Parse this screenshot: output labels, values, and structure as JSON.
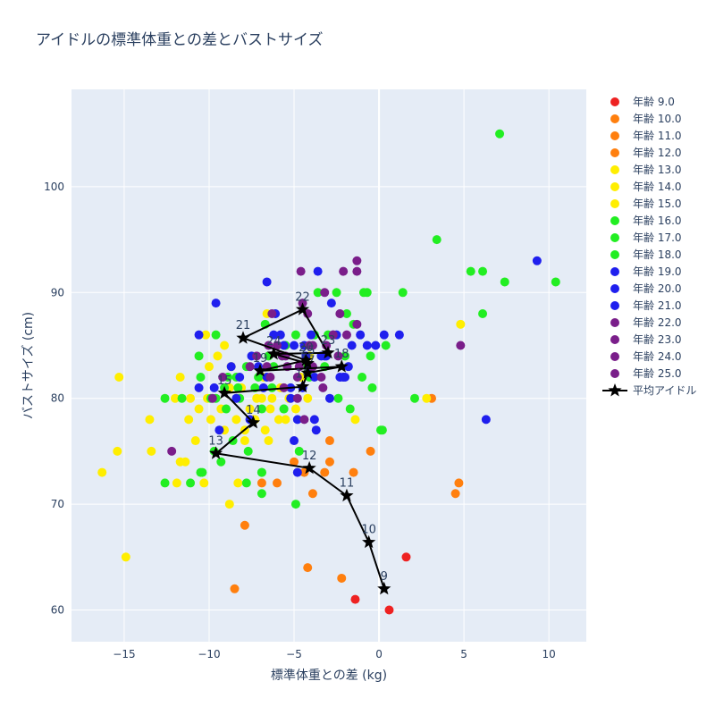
{
  "chart_data": {
    "type": "scatter",
    "title": "アイドルの標準体重との差とバストサイズ",
    "xlabel": "標準体重との差 (kg)",
    "ylabel": "バストサイズ (cm)",
    "xlim": [
      -18.1,
      12.2
    ],
    "ylim": [
      57,
      109.2
    ],
    "xticks": [
      -15,
      -10,
      -5,
      0,
      5,
      10
    ],
    "yticks": [
      60,
      70,
      80,
      90,
      100
    ],
    "xtick_labels": [
      "−15",
      "−10",
      "−5",
      "0",
      "5",
      "10"
    ],
    "ytick_labels": [
      "60",
      "70",
      "80",
      "90",
      "100"
    ],
    "grid": true,
    "legend_position": "right",
    "series": [
      {
        "name": "年齢 9.0",
        "color": "#ee2222",
        "points": [
          [
            -1.4,
            61
          ],
          [
            0.6,
            60
          ],
          [
            1.6,
            65
          ]
        ]
      },
      {
        "name": "年齢 10.0",
        "color": "#ff7f0e",
        "points": [
          [
            -8.5,
            62
          ],
          [
            -4.2,
            64
          ],
          [
            -2.2,
            63
          ],
          [
            -0.5,
            75
          ],
          [
            3.1,
            80
          ]
        ]
      },
      {
        "name": "年齢 11.0",
        "color": "#ff7f0e",
        "points": [
          [
            -7.9,
            68
          ],
          [
            -3.9,
            71
          ],
          [
            -3.2,
            73
          ],
          [
            -2.9,
            74
          ],
          [
            -1.5,
            73
          ],
          [
            4.5,
            71
          ],
          [
            4.7,
            72
          ]
        ]
      },
      {
        "name": "年齢 12.0",
        "color": "#ff7f0e",
        "points": [
          [
            -6.9,
            72
          ],
          [
            -6.0,
            72
          ],
          [
            -5.0,
            74
          ],
          [
            -4.4,
            73
          ],
          [
            -2.9,
            76
          ]
        ]
      },
      {
        "name": "年齢 13.0",
        "color": "#ffee00",
        "points": [
          [
            -16.3,
            73
          ],
          [
            -15.4,
            75
          ],
          [
            -14.9,
            65
          ],
          [
            -13.5,
            78
          ],
          [
            -13.4,
            75
          ],
          [
            -11.9,
            72
          ],
          [
            -11.7,
            74
          ],
          [
            -11.4,
            74
          ],
          [
            -11.2,
            78
          ],
          [
            -10.8,
            76
          ],
          [
            -10.3,
            72
          ],
          [
            -9.1,
            77
          ],
          [
            -8.8,
            70
          ],
          [
            -8.3,
            72
          ],
          [
            -7.9,
            76
          ],
          [
            -7.4,
            78
          ],
          [
            -6.7,
            77
          ],
          [
            -6.5,
            76
          ]
        ]
      },
      {
        "name": "年齢 14.0",
        "color": "#ffee00",
        "points": [
          [
            -15.3,
            82
          ],
          [
            -12.0,
            80
          ],
          [
            -11.7,
            82
          ],
          [
            -11.1,
            80
          ],
          [
            -10.6,
            79
          ],
          [
            -10.1,
            80
          ],
          [
            -10.0,
            83
          ],
          [
            -9.5,
            84
          ],
          [
            -9.1,
            85
          ],
          [
            -8.7,
            83
          ],
          [
            -8.1,
            81
          ],
          [
            -7.6,
            79
          ],
          [
            -7.2,
            80
          ],
          [
            -6.8,
            82
          ],
          [
            -6.3,
            80
          ],
          [
            -5.8,
            81
          ],
          [
            -5.3,
            80
          ],
          [
            -4.9,
            79
          ],
          [
            -4.6,
            82
          ],
          [
            -4.2,
            80
          ],
          [
            -6.6,
            88
          ]
        ]
      },
      {
        "name": "年齢 15.0",
        "color": "#ffee00",
        "points": [
          [
            -10.2,
            86
          ],
          [
            -9.9,
            78
          ],
          [
            -9.3,
            79
          ],
          [
            -8.8,
            81
          ],
          [
            -8.4,
            78
          ],
          [
            -7.9,
            77
          ],
          [
            -7.3,
            78
          ],
          [
            -6.9,
            80
          ],
          [
            -6.4,
            79
          ],
          [
            -5.9,
            78
          ],
          [
            -5.5,
            78
          ],
          [
            -4.1,
            84
          ],
          [
            -1.4,
            78
          ],
          [
            2.8,
            80
          ],
          [
            4.8,
            87
          ]
        ]
      },
      {
        "name": "年齢 16.0",
        "color": "#22ee22",
        "points": [
          [
            -12.6,
            80
          ],
          [
            -12.6,
            72
          ],
          [
            -11.6,
            80
          ],
          [
            -10.5,
            73
          ],
          [
            -10.5,
            82
          ],
          [
            -9.7,
            75
          ],
          [
            -9.6,
            80
          ],
          [
            -9.0,
            79
          ],
          [
            -8.6,
            76
          ],
          [
            -8.2,
            80
          ],
          [
            -7.7,
            75
          ],
          [
            -6.9,
            71
          ],
          [
            -6.9,
            79
          ],
          [
            -6.3,
            81
          ],
          [
            -5.7,
            84
          ],
          [
            -5.6,
            79
          ],
          [
            -4.9,
            70
          ],
          [
            -4.1,
            82
          ],
          [
            -1.9,
            88
          ],
          [
            -1.0,
            82
          ],
          [
            0.1,
            77
          ],
          [
            2.1,
            80
          ],
          [
            3.4,
            95
          ],
          [
            6.1,
            92
          ],
          [
            7.4,
            91
          ],
          [
            10.4,
            91
          ],
          [
            7.1,
            105
          ]
        ]
      },
      {
        "name": "年齢 17.0",
        "color": "#22ee22",
        "points": [
          [
            -11.1,
            72
          ],
          [
            -10.4,
            73
          ],
          [
            -9.9,
            80
          ],
          [
            -9.3,
            74
          ],
          [
            -8.9,
            82
          ],
          [
            -8.3,
            81
          ],
          [
            -7.8,
            72
          ],
          [
            -7.1,
            82
          ],
          [
            -6.9,
            73
          ],
          [
            -6.5,
            84
          ],
          [
            -5.6,
            79
          ],
          [
            -4.7,
            75
          ],
          [
            -3.8,
            86
          ],
          [
            -3.2,
            83
          ],
          [
            -2.4,
            80
          ],
          [
            -1.7,
            79
          ],
          [
            -0.7,
            90
          ],
          [
            -0.5,
            84
          ],
          [
            0.2,
            77
          ],
          [
            1.4,
            90
          ],
          [
            5.4,
            92
          ],
          [
            6.1,
            88
          ]
        ]
      },
      {
        "name": "年齢 18.0",
        "color": "#22ee22",
        "points": [
          [
            -10.6,
            84
          ],
          [
            -9.6,
            86
          ],
          [
            -9.1,
            81
          ],
          [
            -8.4,
            82
          ],
          [
            -7.8,
            83
          ],
          [
            -7.3,
            81
          ],
          [
            -6.7,
            87
          ],
          [
            -6.2,
            83
          ],
          [
            -5.5,
            85
          ],
          [
            -4.9,
            86
          ],
          [
            -4.2,
            83
          ],
          [
            -3.6,
            90
          ],
          [
            -3.0,
            86
          ],
          [
            -2.5,
            90
          ],
          [
            -2.0,
            84
          ],
          [
            -1.5,
            87
          ],
          [
            -0.9,
            90
          ],
          [
            -0.4,
            81
          ],
          [
            0.4,
            85
          ],
          [
            -6.9,
            73
          ]
        ]
      },
      {
        "name": "年齢 19.0",
        "color": "#1f1fee",
        "points": [
          [
            -9.6,
            89
          ],
          [
            -8.4,
            80
          ],
          [
            -7.6,
            78
          ],
          [
            -6.6,
            91
          ],
          [
            -6.1,
            88
          ],
          [
            -5.2,
            80
          ],
          [
            -4.8,
            78
          ],
          [
            -4.3,
            84
          ],
          [
            -3.6,
            92
          ],
          [
            -2.8,
            89
          ],
          [
            -2.3,
            82
          ],
          [
            -1.8,
            83
          ],
          [
            -1.1,
            86
          ],
          [
            -0.2,
            85
          ],
          [
            0.3,
            86
          ],
          [
            1.2,
            86
          ],
          [
            6.3,
            78
          ],
          [
            9.3,
            93
          ]
        ]
      },
      {
        "name": "年齢 20.0",
        "color": "#1f1fee",
        "points": [
          [
            -10.6,
            81
          ],
          [
            -9.4,
            77
          ],
          [
            -8.7,
            83
          ],
          [
            -7.1,
            83
          ],
          [
            -6.6,
            82
          ],
          [
            -5.8,
            86
          ],
          [
            -5.2,
            81
          ],
          [
            -4.8,
            73
          ],
          [
            -4.4,
            85
          ],
          [
            -3.8,
            82
          ],
          [
            -3.2,
            84
          ],
          [
            -2.7,
            86
          ],
          [
            -2.0,
            82
          ],
          [
            -1.6,
            85
          ],
          [
            -0.7,
            85
          ],
          [
            -5.0,
            76
          ]
        ]
      },
      {
        "name": "年齢 21.0",
        "color": "#1f1fee",
        "points": [
          [
            -10.6,
            86
          ],
          [
            -9.7,
            81
          ],
          [
            -8.2,
            82
          ],
          [
            -7.5,
            84
          ],
          [
            -6.8,
            81
          ],
          [
            -6.2,
            86
          ],
          [
            -5.6,
            85
          ],
          [
            -5.0,
            85
          ],
          [
            -4.5,
            81
          ],
          [
            -4.0,
            86
          ],
          [
            -3.8,
            78
          ],
          [
            -3.4,
            84
          ],
          [
            -2.9,
            80
          ],
          [
            -2.5,
            86
          ],
          [
            -2.1,
            82
          ],
          [
            -3.7,
            77
          ],
          [
            -4.1,
            83
          ],
          [
            -3.1,
            84
          ]
        ]
      },
      {
        "name": "年齢 22.0",
        "color": "#7a1e8a",
        "points": [
          [
            -12.2,
            75
          ],
          [
            -9.8,
            80
          ],
          [
            -7.6,
            83
          ],
          [
            -6.5,
            85
          ],
          [
            -6.4,
            82
          ],
          [
            -5.7,
            84
          ],
          [
            -4.6,
            92
          ],
          [
            -4.2,
            88
          ],
          [
            -4.5,
            89
          ],
          [
            -3.3,
            81
          ],
          [
            -2.4,
            84
          ],
          [
            -1.3,
            87
          ],
          [
            -1.3,
            93
          ]
        ]
      },
      {
        "name": "年齢 23.0",
        "color": "#7a1e8a",
        "points": [
          [
            -7.2,
            84
          ],
          [
            -6.0,
            85
          ],
          [
            -5.4,
            83
          ],
          [
            -4.7,
            83
          ],
          [
            -4.1,
            85
          ],
          [
            -3.4,
            82
          ],
          [
            -2.7,
            86
          ],
          [
            -2.1,
            92
          ],
          [
            -1.9,
            86
          ],
          [
            -1.3,
            92
          ],
          [
            -3.2,
            90
          ]
        ]
      },
      {
        "name": "年齢 24.0",
        "color": "#7a1e8a",
        "points": [
          [
            -6.3,
            88
          ],
          [
            -5.6,
            81
          ],
          [
            -4.8,
            80
          ],
          [
            -4.4,
            78
          ],
          [
            -3.9,
            85
          ],
          [
            -2.3,
            88
          ],
          [
            4.8,
            85
          ]
        ]
      },
      {
        "name": "年齢 25.0",
        "color": "#7a1e8a",
        "points": [
          [
            -9.2,
            82
          ],
          [
            -6.6,
            83
          ],
          [
            -5.5,
            84
          ],
          [
            -4.8,
            82
          ],
          [
            -3.9,
            83
          ],
          [
            -3.1,
            85
          ]
        ]
      }
    ],
    "average": {
      "name": "平均アイドル",
      "color": "#000000",
      "points": [
        {
          "age": "9",
          "x": 0.3,
          "y": 62
        },
        {
          "age": "10",
          "x": -0.6,
          "y": 66.4
        },
        {
          "age": "11",
          "x": -1.9,
          "y": 70.8
        },
        {
          "age": "12",
          "x": -4.1,
          "y": 73.4
        },
        {
          "age": "13",
          "x": -9.6,
          "y": 74.8
        },
        {
          "age": "14",
          "x": -7.4,
          "y": 77.7
        },
        {
          "age": "15",
          "x": -9.1,
          "y": 80.5
        },
        {
          "age": "16",
          "x": -4.5,
          "y": 81.1
        },
        {
          "age": "17",
          "x": -4.2,
          "y": 82.4
        },
        {
          "age": "18",
          "x": -2.2,
          "y": 83.0
        },
        {
          "age": "19",
          "x": -7.0,
          "y": 82.6
        },
        {
          "age": "20",
          "x": -4.3,
          "y": 83.6
        },
        {
          "age": "21",
          "x": -8.0,
          "y": 85.7
        },
        {
          "age": "22",
          "x": -4.5,
          "y": 88.4
        },
        {
          "age": "23",
          "x": -3.0,
          "y": 84.3
        },
        {
          "age": "24",
          "x": -6.2,
          "y": 84.2
        },
        {
          "age": "25",
          "x": -4.2,
          "y": 83.3
        }
      ]
    }
  }
}
